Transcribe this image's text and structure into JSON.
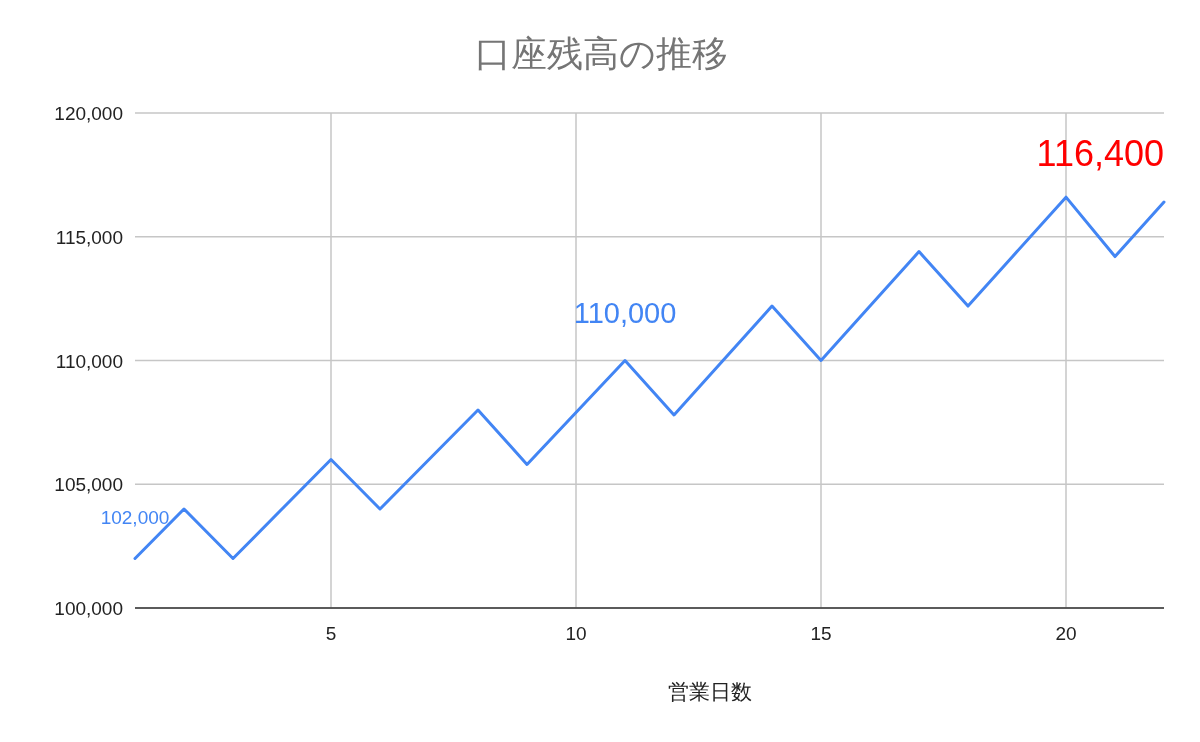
{
  "chart_data": {
    "type": "line",
    "title": "口座残高の推移",
    "xlabel": "営業日数",
    "x": [
      1,
      2,
      3,
      4,
      5,
      6,
      7,
      8,
      9,
      10,
      11,
      12,
      13,
      14,
      15,
      16,
      17,
      18,
      19,
      20,
      21,
      22
    ],
    "series": [
      {
        "color": "#4285f4",
        "values": [
          102000,
          104000,
          102000,
          104000,
          106000,
          104000,
          106000,
          108000,
          105800,
          107900,
          110000,
          107800,
          110000,
          112200,
          110000,
          112200,
          114400,
          112200,
          114400,
          116600,
          114200,
          116400
        ],
        "value_labels": [
          "102,000",
          null,
          null,
          null,
          null,
          null,
          null,
          null,
          null,
          null,
          "110,000",
          null,
          null,
          null,
          null,
          null,
          null,
          null,
          null,
          null,
          null,
          null
        ]
      }
    ],
    "annotations": [
      {
        "text": "116,400",
        "x": 22,
        "y": 116400
      }
    ],
    "xlim": [
      1,
      22
    ],
    "xticks": [
      5,
      10,
      15,
      20
    ],
    "ylim": [
      100000,
      120000
    ],
    "yticks": [
      {
        "value": 100000,
        "label": "100,000"
      },
      {
        "value": 105000,
        "label": "105,000"
      },
      {
        "value": 110000,
        "label": "110,000"
      },
      {
        "value": 115000,
        "label": "115,000"
      },
      {
        "value": 120000,
        "label": "120,000"
      }
    ],
    "grid": true,
    "marker": "none",
    "line_style": "solid"
  }
}
